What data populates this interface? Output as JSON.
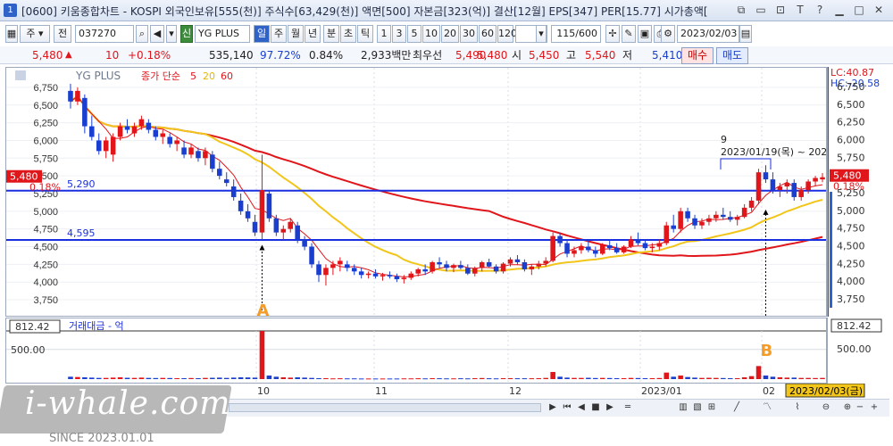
{
  "window": {
    "icon_label": "1",
    "title": "[0600] 키움종합차트 - KOSPI 외국인보유[555(천)] 주식수[63,429(천)] 액면[500] 자본금[323(억)] 결산[12월] EPS[347] PER[15.77] 시가총액[",
    "controls": [
      "⧉",
      "▭",
      "⊡",
      "T",
      "?",
      "▁",
      "□",
      "✕"
    ]
  },
  "toolbar": {
    "period_combo": "주",
    "prev_label": "전",
    "code": "037270",
    "stock_badge": "신",
    "stock_name": "YG PLUS",
    "periods": [
      "일",
      "주",
      "월",
      "년",
      "분",
      "초",
      "틱"
    ],
    "active_period": "일",
    "intervals": [
      "1",
      "3",
      "5",
      "10",
      "20",
      "30",
      "60",
      "120"
    ],
    "count": "115/600",
    "date": "2023/02/03"
  },
  "quote": {
    "price": "5,480",
    "change_arrow": "▲",
    "change": "10",
    "change_pct": "+0.18%",
    "volume": "535,140",
    "vol_ratio": "97.72%",
    "turnover_pct": "0.84%",
    "trade_amount": "2,933백만",
    "best_label": "최우선",
    "best_ask": "5,490",
    "best_bid": "5,480",
    "open_label": "시",
    "open": "5,450",
    "high_label": "고",
    "high": "5,540",
    "low_label": "저",
    "low": "5,410",
    "buy_label": "매수",
    "sell_label": "매도"
  },
  "chart_data": {
    "type": "candlestick",
    "title": "YG PLUS",
    "legend": {
      "main": "종가 단순",
      "ma5": "5",
      "ma20": "20",
      "ma60": "60"
    },
    "colors": {
      "up": "#e0161b",
      "down": "#1a3fd0",
      "ma5": "#e0161b",
      "ma20": "#f2c51a",
      "ma60": "#e0161b",
      "hline": "#1a2fe0"
    },
    "ylim": [
      3650,
      6900
    ],
    "yticks": [
      "6,750",
      "6,500",
      "6,250",
      "6,000",
      "5,750",
      "5,500",
      "5,250",
      "5,000",
      "4,750",
      "4,500",
      "4,250",
      "4,000",
      "3,750"
    ],
    "ytick_values": [
      6750,
      6500,
      6250,
      6000,
      5750,
      5500,
      5250,
      5000,
      4750,
      4500,
      4250,
      4000,
      3750
    ],
    "hlines": [
      {
        "value": 5290,
        "label": "5,290"
      },
      {
        "value": 4595,
        "label": "4,595"
      }
    ],
    "current_price_label": "5,480",
    "current_price_pct": "0.18%",
    "lc_label": "LC:40.87",
    "hc_label": "HC:-20.58",
    "annotation_count": "9",
    "annotation_text": "2023/01/19(목) ~ 202",
    "marker_a": "A",
    "marker_b": "B",
    "x_labels": [
      "10",
      "11",
      "12",
      "2023/01",
      "02"
    ],
    "last_date": "2023/02/03(금)",
    "volume_title": "거래대금 - 억",
    "volume_max_label": "812.42",
    "volume_tick": "500.00",
    "volume_ylim": [
      0,
      812.42
    ],
    "ohlc": [
      [
        6700,
        6800,
        6450,
        6550
      ],
      [
        6550,
        6750,
        6500,
        6700
      ],
      [
        6600,
        6650,
        6100,
        6200
      ],
      [
        6200,
        6350,
        6000,
        6050
      ],
      [
        6000,
        6100,
        5800,
        5850
      ],
      [
        5850,
        6050,
        5750,
        6000
      ],
      [
        5800,
        6100,
        5700,
        6050
      ],
      [
        6050,
        6250,
        6000,
        6200
      ],
      [
        6200,
        6300,
        6100,
        6150
      ],
      [
        6100,
        6250,
        6050,
        6200
      ],
      [
        6200,
        6350,
        6150,
        6300
      ],
      [
        6250,
        6300,
        6100,
        6150
      ],
      [
        6150,
        6200,
        6000,
        6050
      ],
      [
        6050,
        6150,
        5950,
        6100
      ],
      [
        6050,
        6100,
        5900,
        5950
      ],
      [
        5950,
        6050,
        5850,
        6000
      ],
      [
        5900,
        6000,
        5750,
        5800
      ],
      [
        5800,
        5950,
        5750,
        5900
      ],
      [
        5850,
        5900,
        5700,
        5750
      ],
      [
        5750,
        5900,
        5650,
        5850
      ],
      [
        5800,
        5850,
        5550,
        5600
      ],
      [
        5600,
        5700,
        5450,
        5500
      ],
      [
        5450,
        5550,
        5350,
        5400
      ],
      [
        5350,
        5450,
        5150,
        5200
      ],
      [
        5150,
        5250,
        4950,
        5000
      ],
      [
        5000,
        5100,
        4850,
        4900
      ],
      [
        4850,
        4950,
        4650,
        4700
      ],
      [
        4700,
        5800,
        4600,
        5300
      ],
      [
        5250,
        5300,
        4850,
        4900
      ],
      [
        4900,
        4950,
        4650,
        4700
      ],
      [
        4700,
        4800,
        4600,
        4750
      ],
      [
        4750,
        4900,
        4700,
        4850
      ],
      [
        4800,
        4850,
        4550,
        4600
      ],
      [
        4600,
        4650,
        4450,
        4500
      ],
      [
        4500,
        4550,
        4200,
        4250
      ],
      [
        4250,
        4300,
        4000,
        4100
      ],
      [
        4100,
        4250,
        3950,
        4200
      ],
      [
        4200,
        4300,
        4100,
        4250
      ],
      [
        4250,
        4350,
        4150,
        4300
      ],
      [
        4250,
        4300,
        4150,
        4200
      ],
      [
        4200,
        4250,
        4100,
        4150
      ],
      [
        4150,
        4200,
        4050,
        4100
      ],
      [
        4100,
        4150,
        4050,
        4120
      ],
      [
        4120,
        4180,
        4050,
        4080
      ],
      [
        4080,
        4130,
        4020,
        4100
      ],
      [
        4100,
        4150,
        4050,
        4080
      ],
      [
        4080,
        4120,
        4000,
        4040
      ],
      [
        4040,
        4100,
        3980,
        4060
      ],
      [
        4060,
        4150,
        4030,
        4120
      ],
      [
        4120,
        4200,
        4080,
        4180
      ],
      [
        4180,
        4250,
        4100,
        4150
      ],
      [
        4150,
        4300,
        4120,
        4280
      ],
      [
        4280,
        4350,
        4200,
        4250
      ],
      [
        4250,
        4300,
        4150,
        4200
      ],
      [
        4200,
        4260,
        4140,
        4240
      ],
      [
        4240,
        4300,
        4180,
        4200
      ],
      [
        4200,
        4250,
        4100,
        4120
      ],
      [
        4120,
        4220,
        4080,
        4200
      ],
      [
        4200,
        4300,
        4150,
        4280
      ],
      [
        4280,
        4330,
        4200,
        4220
      ],
      [
        4220,
        4250,
        4120,
        4150
      ],
      [
        4150,
        4280,
        4120,
        4260
      ],
      [
        4260,
        4350,
        4220,
        4320
      ],
      [
        4320,
        4380,
        4250,
        4280
      ],
      [
        4280,
        4320,
        4150,
        4180
      ],
      [
        4180,
        4250,
        4100,
        4220
      ],
      [
        4220,
        4300,
        4180,
        4260
      ],
      [
        4260,
        4350,
        4220,
        4300
      ],
      [
        4300,
        4700,
        4280,
        4650
      ],
      [
        4650,
        4700,
        4500,
        4550
      ],
      [
        4550,
        4600,
        4350,
        4400
      ],
      [
        4400,
        4500,
        4350,
        4450
      ],
      [
        4450,
        4550,
        4400,
        4500
      ],
      [
        4500,
        4600,
        4420,
        4450
      ],
      [
        4450,
        4500,
        4350,
        4400
      ],
      [
        4400,
        4550,
        4380,
        4520
      ],
      [
        4520,
        4600,
        4450,
        4480
      ],
      [
        4480,
        4550,
        4400,
        4420
      ],
      [
        4420,
        4520,
        4400,
        4500
      ],
      [
        4500,
        4650,
        4480,
        4600
      ],
      [
        4600,
        4700,
        4520,
        4550
      ],
      [
        4550,
        4600,
        4450,
        4480
      ],
      [
        4480,
        4550,
        4420,
        4500
      ],
      [
        4500,
        4600,
        4450,
        4550
      ],
      [
        4550,
        4850,
        4520,
        4800
      ],
      [
        4800,
        4950,
        4700,
        4750
      ],
      [
        4750,
        5050,
        4700,
        5000
      ],
      [
        5000,
        5050,
        4850,
        4900
      ],
      [
        4900,
        4950,
        4750,
        4800
      ],
      [
        4800,
        4900,
        4750,
        4850
      ],
      [
        4850,
        4950,
        4800,
        4900
      ],
      [
        4900,
        5000,
        4850,
        4950
      ],
      [
        4950,
        5050,
        4880,
        4920
      ],
      [
        4920,
        5000,
        4850,
        4880
      ],
      [
        4880,
        4950,
        4800,
        4920
      ],
      [
        4920,
        5100,
        4900,
        5050
      ],
      [
        5050,
        5200,
        5000,
        5150
      ],
      [
        5150,
        5600,
        5100,
        5550
      ],
      [
        5550,
        5650,
        5400,
        5450
      ],
      [
        5450,
        5550,
        5250,
        5300
      ],
      [
        5300,
        5400,
        5200,
        5350
      ],
      [
        5350,
        5450,
        5250,
        5400
      ],
      [
        5400,
        5450,
        5150,
        5200
      ],
      [
        5200,
        5350,
        5150,
        5300
      ],
      [
        5300,
        5450,
        5250,
        5420
      ],
      [
        5420,
        5500,
        5350,
        5470
      ],
      [
        5450,
        5540,
        5410,
        5480
      ]
    ],
    "volume_values": [
      40,
      35,
      30,
      25,
      20,
      20,
      25,
      30,
      22,
      20,
      25,
      20,
      18,
      20,
      18,
      15,
      15,
      18,
      15,
      20,
      22,
      25,
      20,
      25,
      30,
      28,
      25,
      812,
      60,
      40,
      30,
      25,
      30,
      25,
      20,
      15,
      15,
      12,
      14,
      12,
      12,
      10,
      10,
      10,
      10,
      10,
      10,
      12,
      12,
      14,
      12,
      15,
      14,
      12,
      12,
      14,
      12,
      15,
      18,
      14,
      12,
      15,
      16,
      14,
      14,
      14,
      15,
      20,
      120,
      40,
      25,
      20,
      20,
      22,
      18,
      20,
      18,
      15,
      15,
      20,
      18,
      15,
      15,
      18,
      110,
      40,
      60,
      35,
      25,
      20,
      22,
      20,
      18,
      15,
      15,
      30,
      50,
      220,
      60,
      40,
      30,
      25,
      25,
      20,
      20,
      18,
      20
    ]
  }
}
